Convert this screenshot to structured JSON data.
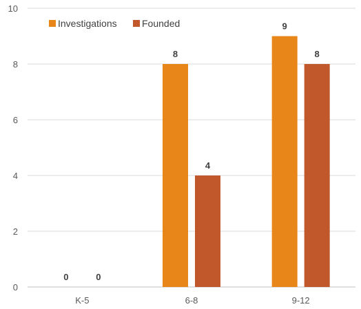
{
  "chart_data": {
    "type": "bar",
    "categories": [
      "K-5",
      "6-8",
      "9-12"
    ],
    "series": [
      {
        "name": "Investigations",
        "values": [
          0,
          8,
          9
        ],
        "color": "#E8861A"
      },
      {
        "name": "Founded",
        "values": [
          0,
          4,
          8
        ],
        "color": "#C0582C"
      }
    ],
    "ylim": [
      0,
      10
    ],
    "yticks": [
      0,
      2,
      4,
      6,
      8,
      10
    ],
    "y_tick_labels": [
      "0",
      "2",
      "4",
      "6",
      "8",
      "10"
    ],
    "grid": true,
    "legend_position": "top-left",
    "data_labels": true
  }
}
